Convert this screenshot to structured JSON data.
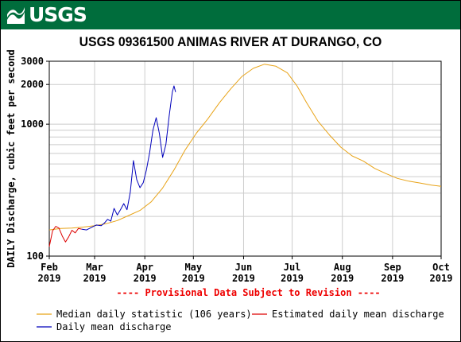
{
  "header": {
    "logo_text": "USGS"
  },
  "colors": {
    "banner": "#006d3c",
    "median": "#e8a317",
    "estimated": "#dd0000",
    "daily": "#0000bb",
    "provisional": "#ee0000",
    "grid": "#cccccc"
  },
  "chart_data": {
    "type": "line",
    "title": "USGS 09361500 ANIMAS RIVER AT DURANGO, CO",
    "ylabel": "DAILY Discharge, cubic feet per second",
    "yscale": "log",
    "ylim": [
      100,
      3000
    ],
    "yticks": [
      {
        "value": 100,
        "label": "100"
      },
      {
        "value": 1000,
        "label": "1000"
      },
      {
        "value": 2000,
        "label": "2000"
      },
      {
        "value": 3000,
        "label": "3000"
      }
    ],
    "xlim": [
      "2019-02-01",
      "2019-10-01"
    ],
    "xticks": [
      {
        "date": "2019-02-01",
        "month": "Feb",
        "year": "2019"
      },
      {
        "date": "2019-03-01",
        "month": "Mar",
        "year": "2019"
      },
      {
        "date": "2019-04-01",
        "month": "Apr",
        "year": "2019"
      },
      {
        "date": "2019-05-01",
        "month": "May",
        "year": "2019"
      },
      {
        "date": "2019-06-01",
        "month": "Jun",
        "year": "2019"
      },
      {
        "date": "2019-07-01",
        "month": "Jul",
        "year": "2019"
      },
      {
        "date": "2019-08-01",
        "month": "Aug",
        "year": "2019"
      },
      {
        "date": "2019-09-01",
        "month": "Sep",
        "year": "2019"
      },
      {
        "date": "2019-10-01",
        "month": "Oct",
        "year": "2019"
      }
    ],
    "grid": true,
    "annotation": "---- Provisional Data Subject to Revision ----",
    "legend": [
      {
        "label": "Median daily statistic (106 years)",
        "series": "median"
      },
      {
        "label": "Estimated daily mean discharge",
        "series": "estimated"
      },
      {
        "label": "Daily mean discharge",
        "series": "daily"
      }
    ],
    "series": [
      {
        "name": "Median daily statistic (106 years)",
        "key": "median",
        "points": [
          [
            "2019-02-01",
            158
          ],
          [
            "2019-02-08",
            162
          ],
          [
            "2019-02-15",
            163
          ],
          [
            "2019-02-22",
            166
          ],
          [
            "2019-03-01",
            170
          ],
          [
            "2019-03-08",
            176
          ],
          [
            "2019-03-15",
            186
          ],
          [
            "2019-03-22",
            203
          ],
          [
            "2019-03-29",
            222
          ],
          [
            "2019-04-05",
            258
          ],
          [
            "2019-04-12",
            328
          ],
          [
            "2019-04-19",
            450
          ],
          [
            "2019-04-26",
            640
          ],
          [
            "2019-05-03",
            860
          ],
          [
            "2019-05-10",
            1100
          ],
          [
            "2019-05-17",
            1450
          ],
          [
            "2019-05-24",
            1850
          ],
          [
            "2019-05-31",
            2300
          ],
          [
            "2019-06-07",
            2650
          ],
          [
            "2019-06-14",
            2850
          ],
          [
            "2019-06-21",
            2750
          ],
          [
            "2019-06-28",
            2450
          ],
          [
            "2019-07-04",
            1950
          ],
          [
            "2019-07-10",
            1450
          ],
          [
            "2019-07-17",
            1050
          ],
          [
            "2019-07-24",
            830
          ],
          [
            "2019-07-31",
            670
          ],
          [
            "2019-08-07",
            575
          ],
          [
            "2019-08-14",
            525
          ],
          [
            "2019-08-21",
            462
          ],
          [
            "2019-08-28",
            422
          ],
          [
            "2019-09-04",
            388
          ],
          [
            "2019-09-11",
            370
          ],
          [
            "2019-09-18",
            358
          ],
          [
            "2019-09-25",
            345
          ],
          [
            "2019-10-01",
            338
          ]
        ]
      },
      {
        "name": "Estimated daily mean discharge",
        "key": "estimated",
        "points": [
          [
            "2019-02-01",
            118
          ],
          [
            "2019-02-03",
            155
          ],
          [
            "2019-02-05",
            168
          ],
          [
            "2019-02-07",
            163
          ],
          [
            "2019-02-09",
            142
          ],
          [
            "2019-02-11",
            128
          ],
          [
            "2019-02-13",
            140
          ],
          [
            "2019-02-15",
            157
          ],
          [
            "2019-02-17",
            150
          ],
          [
            "2019-02-19",
            162
          ],
          [
            "2019-02-21",
            160
          ]
        ]
      },
      {
        "name": "Daily mean discharge",
        "key": "daily",
        "points": [
          [
            "2019-02-21",
            160
          ],
          [
            "2019-02-24",
            158
          ],
          [
            "2019-02-27",
            165
          ],
          [
            "2019-03-02",
            172
          ],
          [
            "2019-03-05",
            170
          ],
          [
            "2019-03-07",
            178
          ],
          [
            "2019-03-09",
            190
          ],
          [
            "2019-03-11",
            184
          ],
          [
            "2019-03-13",
            230
          ],
          [
            "2019-03-15",
            205
          ],
          [
            "2019-03-17",
            225
          ],
          [
            "2019-03-19",
            250
          ],
          [
            "2019-03-21",
            225
          ],
          [
            "2019-03-23",
            305
          ],
          [
            "2019-03-25",
            530
          ],
          [
            "2019-03-27",
            380
          ],
          [
            "2019-03-29",
            330
          ],
          [
            "2019-03-31",
            360
          ],
          [
            "2019-04-02",
            450
          ],
          [
            "2019-04-04",
            610
          ],
          [
            "2019-04-06",
            900
          ],
          [
            "2019-04-08",
            1120
          ],
          [
            "2019-04-10",
            850
          ],
          [
            "2019-04-12",
            560
          ],
          [
            "2019-04-14",
            700
          ],
          [
            "2019-04-16",
            1150
          ],
          [
            "2019-04-18",
            1750
          ],
          [
            "2019-04-19",
            1950
          ],
          [
            "2019-04-20",
            1750
          ]
        ]
      }
    ]
  }
}
